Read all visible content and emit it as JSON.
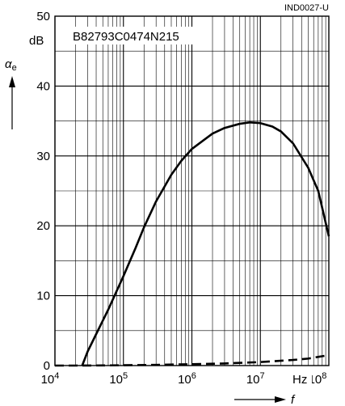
{
  "chart_data": {
    "type": "line",
    "figure_code": "IND0027-U",
    "part_number": "B82793C0474N215",
    "x_scale": "log",
    "xlim": [
      10000,
      100000000
    ],
    "ylim": [
      0,
      50
    ],
    "y_ticks": [
      0,
      10,
      20,
      30,
      40,
      50
    ],
    "x_ticks": [
      {
        "value": 10000,
        "base": "10",
        "exp": "4"
      },
      {
        "value": 100000,
        "base": "10",
        "exp": "5"
      },
      {
        "value": 1000000,
        "base": "10",
        "exp": "6"
      },
      {
        "value": 10000000,
        "base": "10",
        "exp": "7"
      },
      {
        "value": 100000000,
        "base": "10",
        "exp": "8"
      }
    ],
    "y_unit": "dB",
    "x_unit": "Hz",
    "ylabel_symbol": "α",
    "ylabel_subscript": "e",
    "xlabel_symbol": "f",
    "grid": true,
    "series": [
      {
        "style": "solid",
        "x": [
          25000,
          30000,
          40000,
          60000,
          100000,
          150000,
          200000,
          300000,
          500000,
          700000,
          1000000,
          2000000,
          3000000,
          5000000,
          7000000,
          10000000,
          15000000,
          20000000,
          30000000,
          50000000,
          70000000,
          100000000
        ],
        "y": [
          0,
          2,
          4.5,
          8,
          12.8,
          16.8,
          19.8,
          23.5,
          27.3,
          29.3,
          31.0,
          33.2,
          34.0,
          34.6,
          34.8,
          34.7,
          34.2,
          33.5,
          31.8,
          28.3,
          25.0,
          18.5
        ]
      },
      {
        "style": "dashed",
        "x": [
          10000,
          20000,
          50000,
          100000,
          300000,
          1000000,
          3000000,
          10000000,
          30000000,
          50000000,
          100000000
        ],
        "y": [
          0,
          0,
          0.02,
          0.05,
          0.1,
          0.2,
          0.3,
          0.5,
          0.8,
          1.0,
          1.5
        ]
      }
    ]
  }
}
